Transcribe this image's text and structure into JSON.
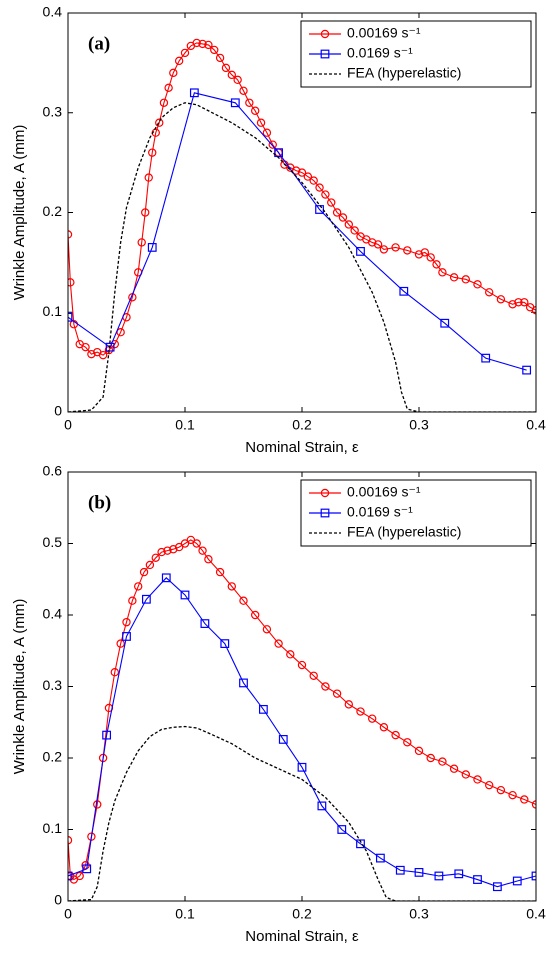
{
  "chart_data": [
    {
      "type": "line",
      "panel_label": "(a)",
      "xlabel": "Nominal Strain, ε",
      "ylabel": "Wrinkle Amplitude, A (mm)",
      "xlim": [
        0,
        0.4
      ],
      "ylim": [
        0,
        0.4
      ],
      "xticks": [
        0,
        0.1,
        0.2,
        0.3,
        0.4
      ],
      "yticks": [
        0,
        0.1,
        0.2,
        0.3,
        0.4
      ],
      "legend": "upper right",
      "series": [
        {
          "name": "0.00169 s⁻¹",
          "color": "#ff0000",
          "marker": "circle",
          "linestyle": "solid",
          "x": [
            0,
            0.002,
            0.005,
            0.01,
            0.015,
            0.02,
            0.025,
            0.03,
            0.035,
            0.04,
            0.045,
            0.05,
            0.055,
            0.06,
            0.063,
            0.066,
            0.069,
            0.072,
            0.075,
            0.078,
            0.082,
            0.086,
            0.09,
            0.095,
            0.1,
            0.105,
            0.11,
            0.115,
            0.12,
            0.125,
            0.13,
            0.135,
            0.14,
            0.145,
            0.15,
            0.155,
            0.16,
            0.165,
            0.17,
            0.175,
            0.18,
            0.185,
            0.19,
            0.195,
            0.2,
            0.205,
            0.21,
            0.215,
            0.22,
            0.225,
            0.23,
            0.235,
            0.24,
            0.245,
            0.25,
            0.255,
            0.26,
            0.265,
            0.27,
            0.28,
            0.29,
            0.3,
            0.305,
            0.31,
            0.315,
            0.32,
            0.33,
            0.34,
            0.35,
            0.36,
            0.37,
            0.38,
            0.385,
            0.39,
            0.395,
            0.4
          ],
          "values": [
            0.178,
            0.13,
            0.088,
            0.068,
            0.065,
            0.058,
            0.06,
            0.057,
            0.062,
            0.068,
            0.08,
            0.095,
            0.115,
            0.14,
            0.17,
            0.2,
            0.235,
            0.26,
            0.28,
            0.29,
            0.31,
            0.325,
            0.34,
            0.352,
            0.36,
            0.367,
            0.37,
            0.369,
            0.368,
            0.363,
            0.355,
            0.345,
            0.338,
            0.333,
            0.322,
            0.31,
            0.302,
            0.29,
            0.28,
            0.268,
            0.26,
            0.248,
            0.245,
            0.242,
            0.24,
            0.236,
            0.232,
            0.225,
            0.218,
            0.21,
            0.2,
            0.195,
            0.188,
            0.182,
            0.176,
            0.173,
            0.17,
            0.168,
            0.163,
            0.165,
            0.162,
            0.158,
            0.16,
            0.155,
            0.148,
            0.14,
            0.135,
            0.133,
            0.128,
            0.12,
            0.113,
            0.108,
            0.11,
            0.11,
            0.105,
            0.102
          ]
        },
        {
          "name": "0.0169 s⁻¹",
          "color": "#0000ff",
          "marker": "square",
          "linestyle": "solid",
          "x": [
            0,
            0.036,
            0.072,
            0.108,
            0.143,
            0.18,
            0.215,
            0.25,
            0.287,
            0.322,
            0.357,
            0.392
          ],
          "values": [
            0.095,
            0.065,
            0.165,
            0.32,
            0.31,
            0.26,
            0.203,
            0.161,
            0.121,
            0.089,
            0.054,
            0.042
          ]
        },
        {
          "name": "FEA (hyperelastic)",
          "color": "#000000",
          "marker": "none",
          "linestyle": "dotted",
          "x": [
            0,
            0.02,
            0.03,
            0.035,
            0.04,
            0.045,
            0.05,
            0.06,
            0.07,
            0.08,
            0.09,
            0.1,
            0.11,
            0.12,
            0.14,
            0.16,
            0.18,
            0.2,
            0.22,
            0.24,
            0.26,
            0.27,
            0.28,
            0.285,
            0.29,
            0.3,
            0.4
          ],
          "values": [
            0,
            0.002,
            0.015,
            0.06,
            0.12,
            0.17,
            0.205,
            0.245,
            0.275,
            0.295,
            0.305,
            0.31,
            0.308,
            0.302,
            0.29,
            0.275,
            0.255,
            0.23,
            0.2,
            0.165,
            0.12,
            0.09,
            0.05,
            0.02,
            0.003,
            0,
            0
          ]
        }
      ]
    },
    {
      "type": "line",
      "panel_label": "(b)",
      "xlabel": "Nominal Strain, ε",
      "ylabel": "Wrinkle Amplitude, A (mm)",
      "xlim": [
        0,
        0.4
      ],
      "ylim": [
        0,
        0.6
      ],
      "xticks": [
        0,
        0.1,
        0.2,
        0.3,
        0.4
      ],
      "yticks": [
        0,
        0.1,
        0.2,
        0.3,
        0.4,
        0.5,
        0.6
      ],
      "legend": "upper right",
      "series": [
        {
          "name": "0.00169 s⁻¹",
          "color": "#ff0000",
          "marker": "circle",
          "linestyle": "solid",
          "x": [
            0,
            0.002,
            0.005,
            0.01,
            0.015,
            0.02,
            0.025,
            0.03,
            0.035,
            0.04,
            0.045,
            0.05,
            0.055,
            0.06,
            0.065,
            0.07,
            0.075,
            0.08,
            0.085,
            0.09,
            0.095,
            0.1,
            0.105,
            0.11,
            0.115,
            0.12,
            0.13,
            0.14,
            0.15,
            0.16,
            0.17,
            0.18,
            0.19,
            0.2,
            0.21,
            0.22,
            0.23,
            0.24,
            0.25,
            0.26,
            0.27,
            0.28,
            0.29,
            0.3,
            0.31,
            0.32,
            0.33,
            0.34,
            0.35,
            0.36,
            0.37,
            0.38,
            0.39,
            0.4
          ],
          "values": [
            0.085,
            0.035,
            0.03,
            0.035,
            0.05,
            0.09,
            0.135,
            0.2,
            0.27,
            0.32,
            0.36,
            0.39,
            0.42,
            0.44,
            0.46,
            0.47,
            0.48,
            0.488,
            0.49,
            0.492,
            0.495,
            0.5,
            0.505,
            0.5,
            0.49,
            0.478,
            0.46,
            0.44,
            0.42,
            0.4,
            0.38,
            0.36,
            0.345,
            0.33,
            0.315,
            0.3,
            0.29,
            0.275,
            0.265,
            0.255,
            0.243,
            0.232,
            0.222,
            0.21,
            0.2,
            0.195,
            0.185,
            0.177,
            0.17,
            0.162,
            0.155,
            0.148,
            0.142,
            0.135
          ]
        },
        {
          "name": "0.0169 s⁻¹",
          "color": "#0000ff",
          "marker": "square",
          "linestyle": "solid",
          "x": [
            0,
            0.016,
            0.033,
            0.05,
            0.067,
            0.084,
            0.1,
            0.117,
            0.134,
            0.15,
            0.167,
            0.184,
            0.2,
            0.217,
            0.234,
            0.25,
            0.267,
            0.284,
            0.3,
            0.317,
            0.334,
            0.35,
            0.367,
            0.384,
            0.4
          ],
          "values": [
            0.035,
            0.045,
            0.232,
            0.37,
            0.422,
            0.452,
            0.428,
            0.388,
            0.36,
            0.305,
            0.268,
            0.226,
            0.187,
            0.133,
            0.1,
            0.08,
            0.06,
            0.043,
            0.04,
            0.035,
            0.038,
            0.03,
            0.02,
            0.028,
            0.035
          ]
        },
        {
          "name": "FEA (hyperelastic)",
          "color": "#000000",
          "marker": "none",
          "linestyle": "dotted",
          "x": [
            0,
            0.02,
            0.025,
            0.03,
            0.035,
            0.04,
            0.05,
            0.06,
            0.07,
            0.08,
            0.09,
            0.1,
            0.11,
            0.12,
            0.14,
            0.16,
            0.18,
            0.2,
            0.22,
            0.24,
            0.255,
            0.265,
            0.272,
            0.28,
            0.4
          ],
          "values": [
            0,
            0.002,
            0.02,
            0.07,
            0.11,
            0.14,
            0.18,
            0.21,
            0.23,
            0.24,
            0.243,
            0.244,
            0.242,
            0.235,
            0.22,
            0.2,
            0.185,
            0.17,
            0.145,
            0.11,
            0.07,
            0.03,
            0.005,
            0,
            0
          ]
        }
      ]
    }
  ]
}
